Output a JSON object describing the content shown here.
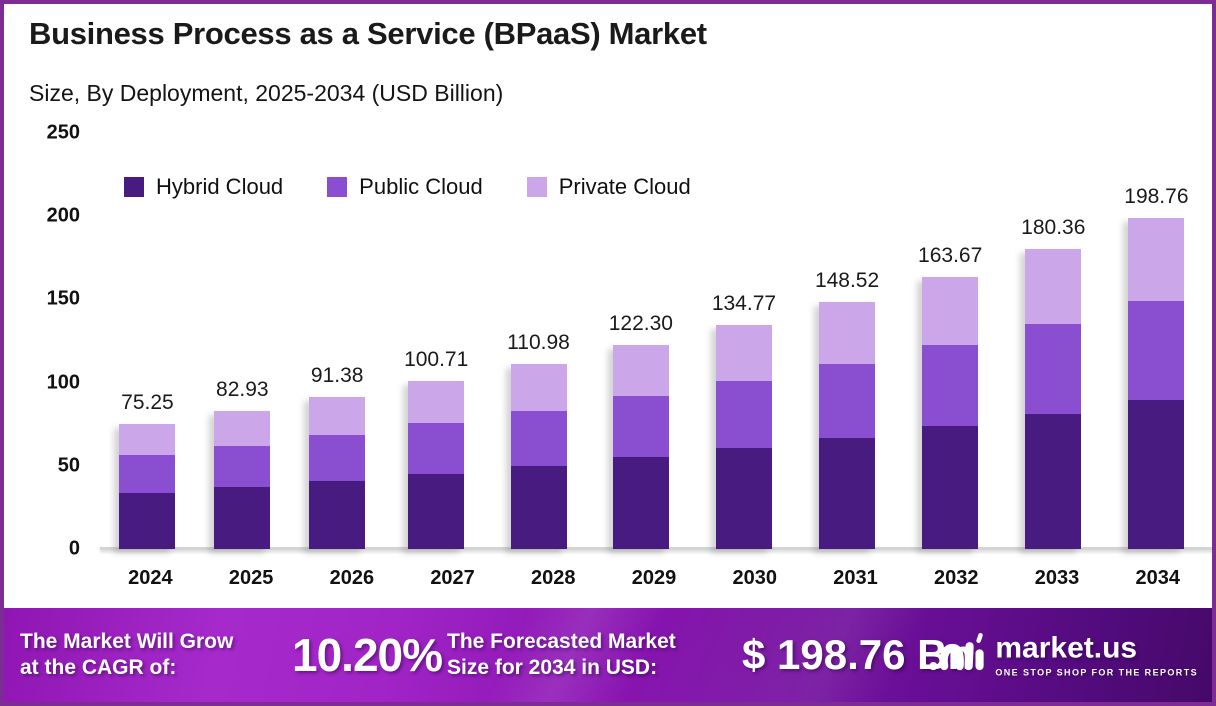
{
  "header": {
    "title": "Business Process as a Service (BPaaS) Market",
    "subtitle": "Size, By Deployment, 2025-2034 (USD Billion)"
  },
  "chart_data": {
    "type": "bar",
    "stacked": true,
    "title": "Business Process as a Service (BPaaS) Market",
    "subtitle": "Size, By Deployment, 2025-2034 (USD Billion)",
    "xlabel": "",
    "ylabel": "USD Billion",
    "ylim": [
      0,
      250
    ],
    "yticks": [
      0,
      50,
      100,
      150,
      200,
      250
    ],
    "grid": false,
    "legend_position": "top-left-inside",
    "categories": [
      "2024",
      "2025",
      "2026",
      "2027",
      "2028",
      "2029",
      "2030",
      "2031",
      "2032",
      "2033",
      "2034"
    ],
    "series": [
      {
        "name": "Hybrid Cloud",
        "color": "#471B80",
        "values": [
          33.86,
          37.32,
          41.12,
          45.32,
          49.94,
          55.04,
          60.65,
          66.83,
          73.65,
          81.16,
          89.44
        ]
      },
      {
        "name": "Public Cloud",
        "color": "#8A4FD0",
        "values": [
          22.58,
          24.88,
          27.41,
          30.21,
          33.29,
          36.69,
          40.43,
          44.56,
          49.1,
          54.11,
          59.63
        ]
      },
      {
        "name": "Private Cloud",
        "color": "#CBA6E9",
        "values": [
          18.81,
          20.73,
          22.85,
          25.18,
          27.75,
          30.57,
          33.69,
          37.13,
          40.92,
          45.09,
          49.69
        ]
      }
    ],
    "totals": [
      75.25,
      82.93,
      91.38,
      100.71,
      110.98,
      122.3,
      134.77,
      148.52,
      163.67,
      180.36,
      198.76
    ],
    "total_labels": [
      "75.25",
      "82.93",
      "91.38",
      "100.71",
      "110.98",
      "122.30",
      "134.77",
      "148.52",
      "163.67",
      "180.36",
      "198.76"
    ]
  },
  "footer": {
    "cagr_label_line1": "The Market Will Grow",
    "cagr_label_line2": "at the CAGR of:",
    "cagr_value": "10.20%",
    "forecast_label_line1": "The Forecasted Market",
    "forecast_label_line2": "Size for 2034 in USD:",
    "forecast_value": "$ 198.76 Bn",
    "brand": {
      "name": "market.us",
      "tagline": "ONE STOP SHOP FOR THE REPORTS"
    }
  },
  "colors": {
    "frame_border": "#7E2C95",
    "axis_line": "#D4D4D4",
    "text_dark": "#1A1A1A",
    "banner_gradient_start": "#A62ACB",
    "banner_gradient_end": "#450969"
  }
}
